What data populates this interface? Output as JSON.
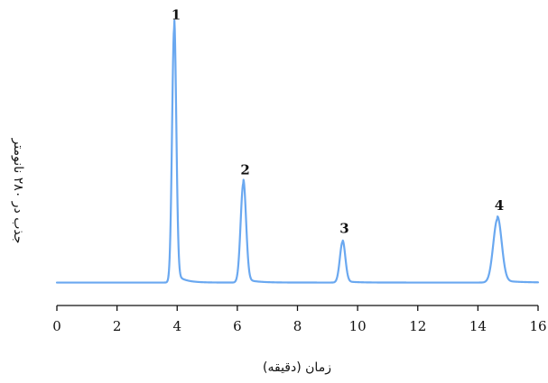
{
  "chart_data": {
    "type": "line",
    "title": "",
    "xlabel": "زمان (دقیقه)",
    "ylabel": "جذب در ۲۸۰ نانومتر",
    "xlim": [
      0,
      16
    ],
    "x_ticks": [
      0,
      2,
      4,
      6,
      8,
      10,
      12,
      14,
      16
    ],
    "y_ticks": [],
    "grid": false,
    "legend": "none",
    "line_color": "#6aa8f0",
    "baseline": 0.03,
    "series": [
      {
        "peaks": [
          {
            "label": "1",
            "time": 3.9,
            "height": 1.0,
            "width": 0.07
          },
          {
            "label": "2",
            "time": 6.2,
            "height": 0.39,
            "width": 0.09
          },
          {
            "label": "3",
            "time": 9.5,
            "height": 0.16,
            "width": 0.09
          },
          {
            "label": "4",
            "time": 14.65,
            "height": 0.25,
            "width": 0.14
          }
        ]
      }
    ]
  }
}
